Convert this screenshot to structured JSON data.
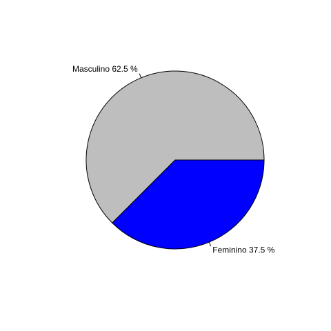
{
  "chart_data": {
    "type": "pie",
    "title": "",
    "start_angle_deg": 0,
    "direction": "counterclockwise",
    "slices": [
      {
        "label": "Masculino 62.5 %",
        "category": "Masculino",
        "value": 62.5,
        "color": "#bebebe"
      },
      {
        "label": "Feminino 37.5 %",
        "category": "Feminino",
        "value": 37.5,
        "color": "#0000ff"
      }
    ]
  }
}
